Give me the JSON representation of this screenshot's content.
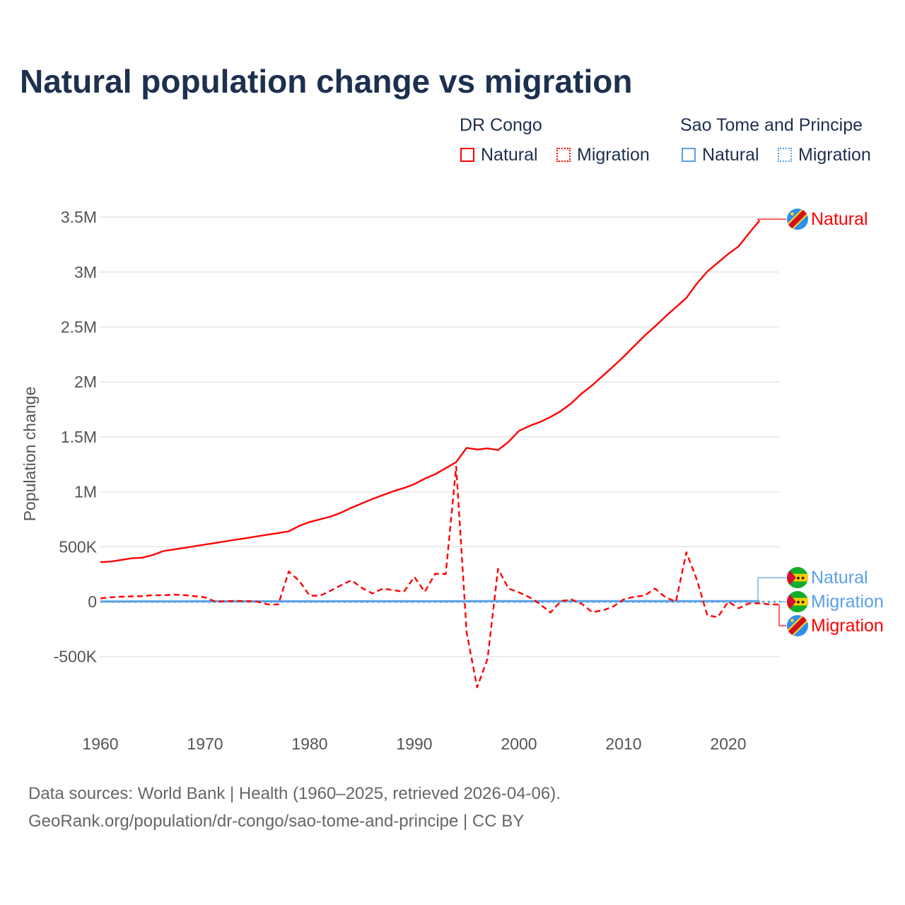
{
  "title": "Natural population change vs migration",
  "legend": {
    "group1": "DR Congo",
    "group2": "Sao Tome and Principe",
    "natural": "Natural",
    "migration": "Migration"
  },
  "sources": {
    "line1": "Data sources: World Bank | Health (1960–2025, retrieved 2026-04-06).",
    "line2": "GeoRank.org/population/dr-congo/sao-tome-and-principe | CC BY"
  },
  "colors": {
    "drc": "#ff0000",
    "stp": "#5aa0e6"
  },
  "chart_data": {
    "type": "line",
    "title": "Natural population change vs migration",
    "xlabel": "",
    "ylabel": "Population change",
    "xlim": [
      1960,
      2025
    ],
    "ylim": [
      -1000000,
      3500000
    ],
    "xticks": [
      "1960",
      "1970",
      "1980",
      "1990",
      "2000",
      "2010",
      "2020"
    ],
    "yticks": [
      {
        "v": 3500000,
        "l": "3.5M"
      },
      {
        "v": 3000000,
        "l": "3M"
      },
      {
        "v": 2500000,
        "l": "2.5M"
      },
      {
        "v": 2000000,
        "l": "2M"
      },
      {
        "v": 1500000,
        "l": "1.5M"
      },
      {
        "v": 1000000,
        "l": "1M"
      },
      {
        "v": 500000,
        "l": "500K"
      },
      {
        "v": 0,
        "l": "0"
      },
      {
        "v": -500000,
        "l": "-500K"
      }
    ],
    "grid": true,
    "series": [
      {
        "name": "DR Congo Natural",
        "label": "Natural",
        "color": "#ff0000",
        "dash": false,
        "start": 1960,
        "values": [
          360000,
          365000,
          380000,
          395000,
          400000,
          425000,
          460000,
          475000,
          490000,
          505000,
          520000,
          535000,
          550000,
          565000,
          580000,
          595000,
          610000,
          625000,
          640000,
          690000,
          725000,
          750000,
          775000,
          810000,
          855000,
          895000,
          935000,
          970000,
          1005000,
          1035000,
          1070000,
          1120000,
          1160000,
          1215000,
          1270000,
          1400000,
          1385000,
          1395000,
          1380000,
          1455000,
          1555000,
          1600000,
          1635000,
          1680000,
          1735000,
          1805000,
          1895000,
          1970000,
          2055000,
          2140000,
          2230000,
          2325000,
          2420000,
          2505000,
          2595000,
          2680000,
          2765000,
          2895000,
          3005000,
          3085000,
          3165000,
          3235000,
          3355000,
          3470000
        ]
      },
      {
        "name": "DR Congo Migration",
        "label": "Migration",
        "color": "#ff0000",
        "dash": true,
        "start": 1960,
        "values": [
          30000,
          40000,
          45000,
          48000,
          50000,
          60000,
          58000,
          65000,
          60000,
          50000,
          40000,
          0,
          5000,
          8000,
          5000,
          0,
          -25000,
          -25000,
          275000,
          190000,
          55000,
          55000,
          100000,
          150000,
          195000,
          125000,
          75000,
          120000,
          105000,
          90000,
          225000,
          90000,
          255000,
          250000,
          1230000,
          -280000,
          -780000,
          -520000,
          300000,
          120000,
          85000,
          40000,
          -20000,
          -100000,
          5000,
          20000,
          -20000,
          -95000,
          -80000,
          -45000,
          20000,
          45000,
          55000,
          120000,
          40000,
          0,
          450000,
          200000,
          -125000,
          -140000,
          0,
          -60000,
          -15000,
          -15000,
          -25000,
          -25000
        ]
      },
      {
        "name": "Sao Tome and Principe Natural",
        "label": "Natural",
        "color": "#5aa0e6",
        "dash": false,
        "start": 1960,
        "values": [
          2000,
          2100,
          2200,
          2300,
          2400,
          2500,
          2600,
          2700,
          2800,
          2900,
          3000,
          3000,
          3000,
          3100,
          3100,
          3200,
          3200,
          3300,
          3300,
          3400,
          3400,
          3500,
          3500,
          3600,
          3600,
          3700,
          3700,
          3800,
          3800,
          3900,
          3900,
          4000,
          4000,
          4000,
          4100,
          4100,
          4200,
          4200,
          4300,
          4300,
          4400,
          4400,
          4500,
          4500,
          4500,
          4600,
          4600,
          4600,
          4700,
          4700,
          4700,
          4800,
          4800,
          4800,
          4800,
          4800,
          4800,
          4700,
          4700,
          4600,
          4500,
          4400,
          4300,
          4200
        ]
      },
      {
        "name": "Sao Tome and Principe Migration",
        "label": "Migration",
        "color": "#5aa0e6",
        "dash": true,
        "start": 1960,
        "values": [
          -500,
          -500,
          -500,
          -500,
          -600,
          -600,
          -600,
          -600,
          -700,
          -700,
          -700,
          -700,
          -700,
          -700,
          -800,
          -800,
          -800,
          -800,
          -800,
          -800,
          -800,
          -800,
          -800,
          -800,
          -800,
          -800,
          -800,
          -800,
          -800,
          -800,
          -800,
          -800,
          -800,
          -800,
          -800,
          -800,
          -800,
          -800,
          -800,
          -800,
          -800,
          -800,
          -800,
          -800,
          -800,
          -800,
          -800,
          -800,
          -800,
          -800,
          -800,
          -800,
          -800,
          -800,
          -800,
          -800,
          -800,
          -800,
          -800,
          -800,
          -800,
          -800,
          -800,
          -800,
          -800,
          -800
        ]
      }
    ]
  }
}
